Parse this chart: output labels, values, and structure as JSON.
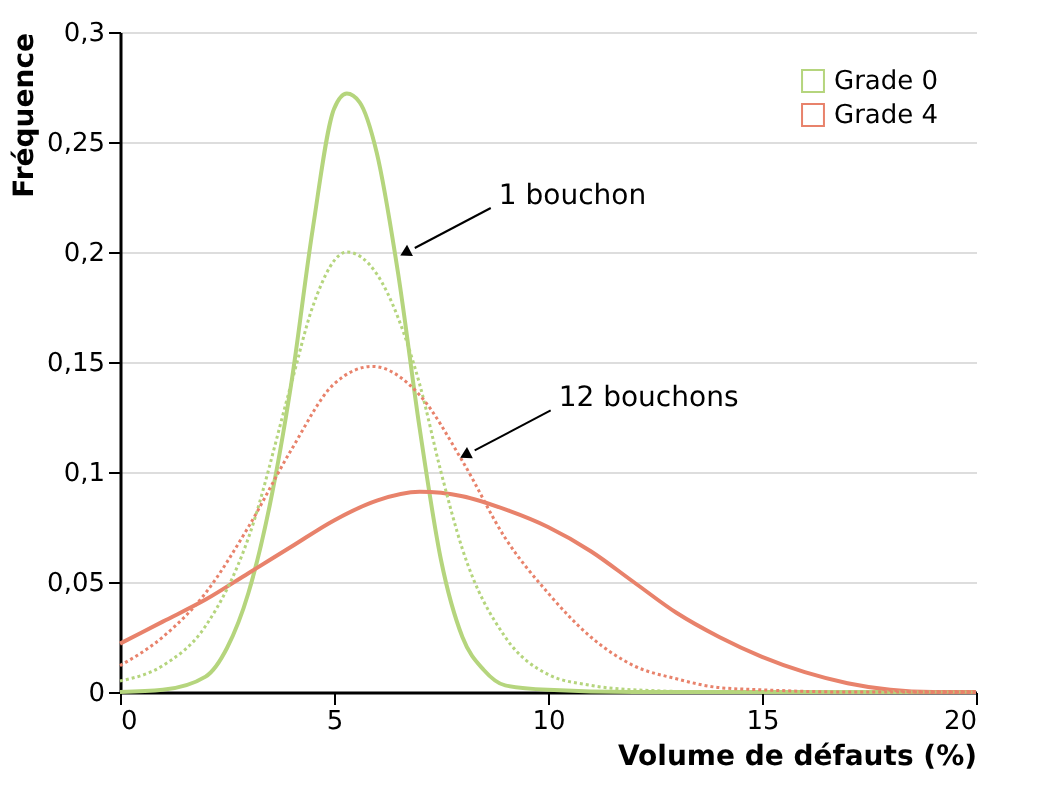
{
  "chart_data": {
    "type": "line",
    "xlabel": "Volume de défauts (%)",
    "ylabel": "Fréquence",
    "xlim": [
      0,
      20
    ],
    "xticks": [
      0,
      5,
      10,
      15,
      20
    ],
    "ylim": [
      0,
      0.3
    ],
    "yticks": [
      0,
      {
        "value": 0.05,
        "label": "0,05"
      },
      {
        "value": 0.1,
        "label": "0,1"
      },
      {
        "value": 0.15,
        "label": "0,15"
      },
      {
        "value": 0.2,
        "label": "0,2"
      },
      {
        "value": 0.25,
        "label": "0,25"
      },
      {
        "value": 0.3,
        "label": "0,3"
      }
    ],
    "grid": "y",
    "legend": "top right",
    "marker": "none",
    "series": [
      {
        "name": "Grade 0",
        "color": "#b5d57d",
        "line_style": "solid",
        "x": [
          0,
          1,
          2,
          2.5,
          3,
          3.5,
          4,
          4.5,
          5,
          5.3,
          5.6,
          6,
          6.5,
          7,
          7.5,
          8,
          8.5,
          9,
          10,
          12,
          20
        ],
        "values": [
          0,
          0.001,
          0.007,
          0.02,
          0.045,
          0.085,
          0.14,
          0.21,
          0.265,
          0.272,
          0.268,
          0.245,
          0.19,
          0.12,
          0.06,
          0.025,
          0.01,
          0.003,
          0.001,
          0,
          0
        ]
      },
      {
        "name": "Grade 4",
        "color": "#e8826b",
        "line_style": "solid",
        "x": [
          0,
          1,
          2,
          3,
          4,
          5,
          6,
          7,
          8,
          9,
          10,
          11,
          12,
          13,
          14,
          15,
          16,
          17,
          18,
          19,
          20
        ],
        "values": [
          0.022,
          0.032,
          0.042,
          0.054,
          0.066,
          0.078,
          0.087,
          0.091,
          0.089,
          0.083,
          0.075,
          0.064,
          0.05,
          0.036,
          0.025,
          0.016,
          0.009,
          0.004,
          0.001,
          0,
          0
        ]
      },
      {
        "color": "#b5d57d",
        "line_style": "dotted",
        "x": [
          0,
          1,
          2,
          3,
          4,
          4.5,
          5.3,
          6,
          6.5,
          7,
          7.5,
          8,
          9,
          10,
          11,
          12,
          14,
          20
        ],
        "values": [
          0.005,
          0.012,
          0.03,
          0.07,
          0.14,
          0.175,
          0.2,
          0.19,
          0.17,
          0.14,
          0.1,
          0.065,
          0.025,
          0.008,
          0.003,
          0.001,
          0,
          0
        ]
      },
      {
        "color": "#e8826b",
        "line_style": "dotted",
        "x": [
          0,
          1,
          2,
          3,
          4,
          5,
          5.9,
          7,
          8,
          9,
          10,
          11,
          12,
          13,
          14,
          15,
          17,
          20
        ],
        "values": [
          0.012,
          0.025,
          0.045,
          0.075,
          0.11,
          0.14,
          0.148,
          0.135,
          0.105,
          0.07,
          0.045,
          0.025,
          0.012,
          0.006,
          0.002,
          0.001,
          0,
          0
        ]
      }
    ],
    "annotations": [
      {
        "text": "1 bouchon",
        "x": 6.7,
        "y": 0.2
      },
      {
        "text": "12 bouchons",
        "x": 8.1,
        "y": 0.108
      }
    ]
  }
}
